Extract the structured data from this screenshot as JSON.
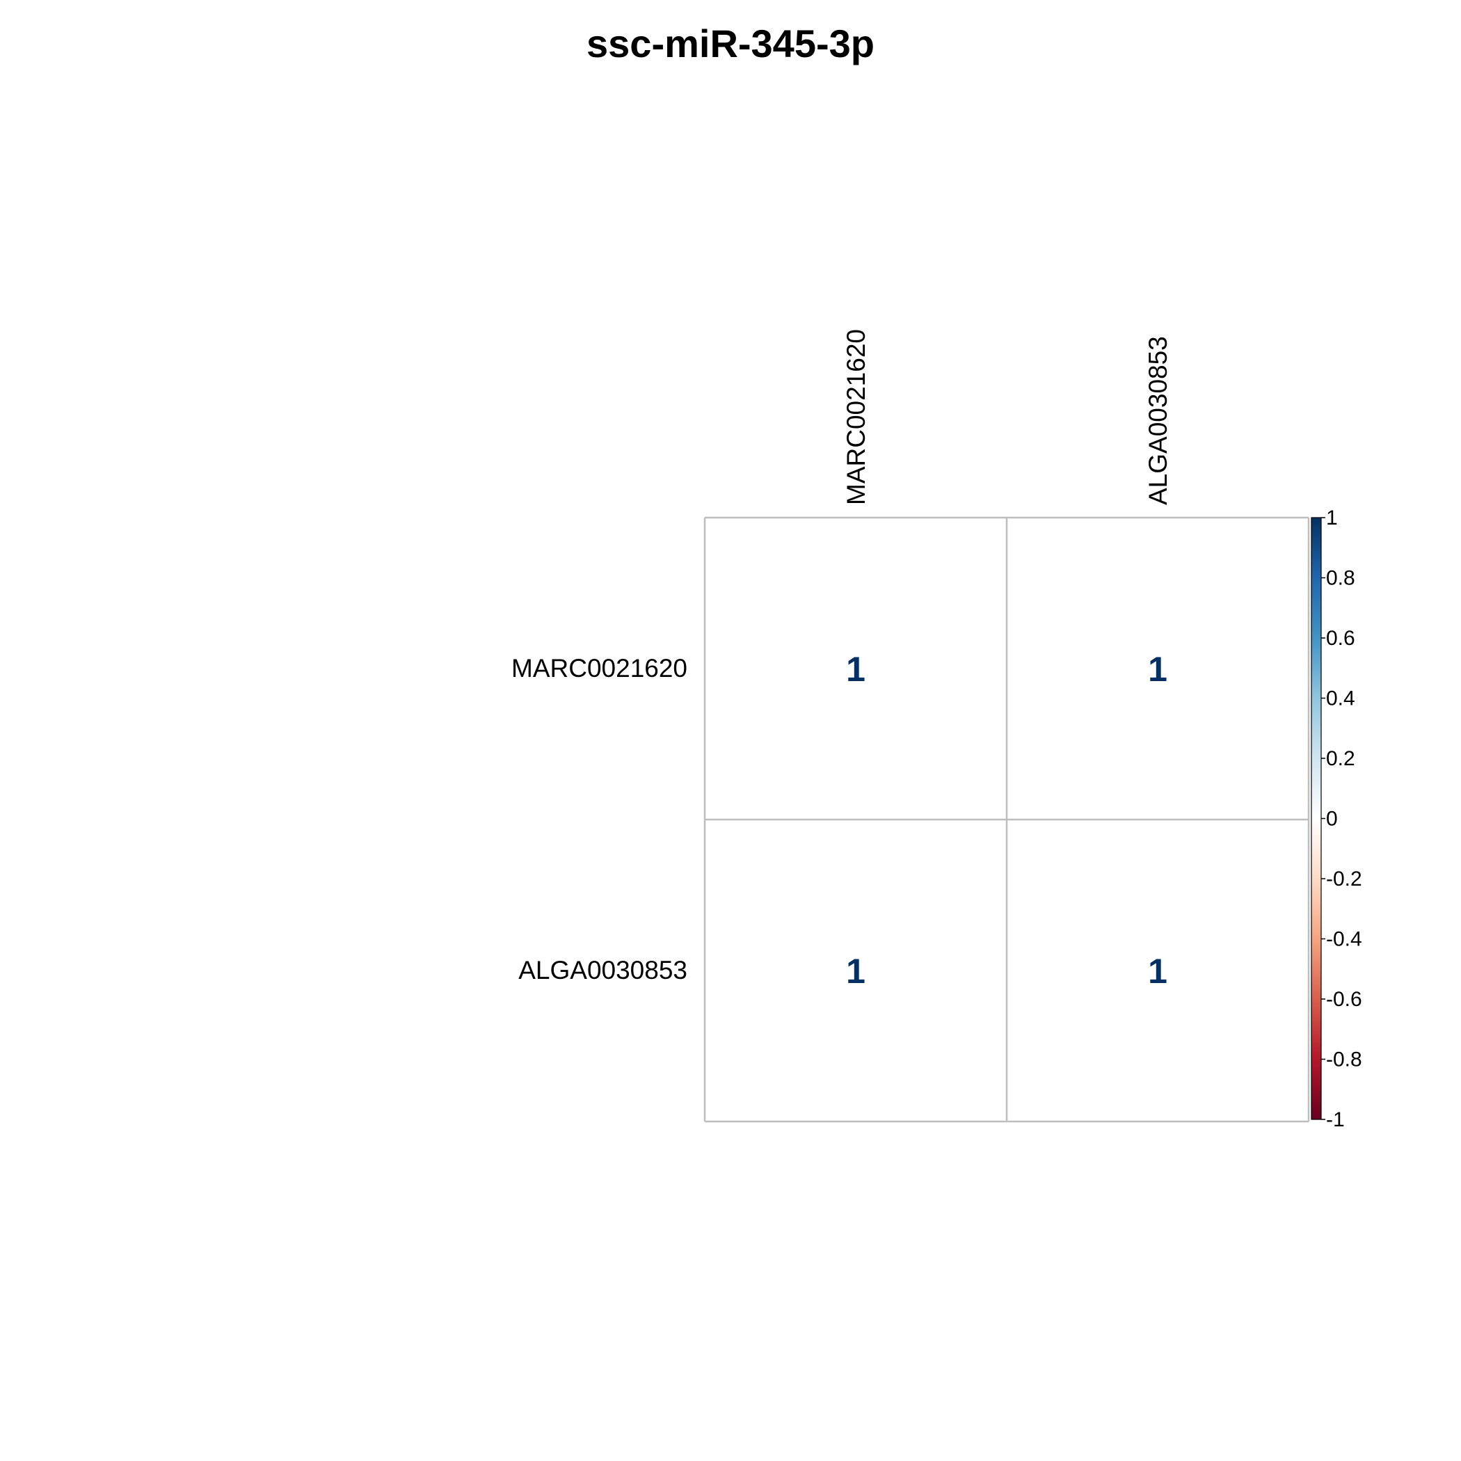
{
  "chart_data": {
    "type": "heatmap",
    "title": "ssc-miR-345-3p",
    "rows": [
      "MARC0021620",
      "ALGA0030853"
    ],
    "columns": [
      "MARC0021620",
      "ALGA0030853"
    ],
    "values": [
      [
        1,
        1
      ],
      [
        1,
        1
      ]
    ],
    "value_labels": [
      [
        "1",
        "1"
      ],
      [
        "1",
        "1"
      ]
    ],
    "colorbar": {
      "range": [
        -1,
        1
      ],
      "tick_values": [
        1,
        0.8,
        0.6,
        0.4,
        0.2,
        0,
        -0.2,
        -0.4,
        -0.6,
        -0.8,
        -1
      ],
      "tick_labels": [
        "1",
        "0.8",
        "0.6",
        "0.4",
        "0.2",
        "0",
        "-0.2",
        "-0.4",
        "-0.6",
        "-0.8",
        "-1"
      ],
      "colors": [
        "#67001F",
        "#B2182B",
        "#D6604D",
        "#F4A582",
        "#FDDBC7",
        "#FFFFFF",
        "#D1E5F0",
        "#92C5DE",
        "#4393C3",
        "#2166AC",
        "#053061"
      ]
    },
    "grid": true,
    "legend_position": "right",
    "cell_fill": "#FFFFFF",
    "grid_color": "#BEBEBE",
    "value_text_color": "#053061"
  }
}
